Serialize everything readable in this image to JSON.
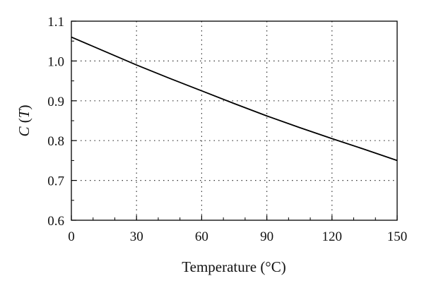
{
  "chart_data": {
    "type": "line",
    "xlabel": "Temperature (°C)",
    "ylabel": {
      "italic_a": "C",
      "middle": " (",
      "italic_b": "T",
      "end": ")"
    },
    "xlim": [
      0,
      150
    ],
    "ylim": [
      0.6,
      1.1
    ],
    "x_ticks": [
      0,
      30,
      60,
      90,
      120,
      150
    ],
    "y_ticks": [
      0.6,
      0.7,
      0.8,
      0.9,
      1.0,
      1.1
    ],
    "x_tick_labels": [
      "0",
      "30",
      "60",
      "90",
      "120",
      "150"
    ],
    "y_tick_labels": [
      "0.6",
      "0.7",
      "0.8",
      "0.9",
      "1.0",
      "1.1"
    ],
    "grid": "dotted",
    "series": [
      {
        "x": [
          0,
          15,
          30,
          45,
          60,
          75,
          90,
          105,
          120,
          135,
          150
        ],
        "y": [
          1.06,
          1.025,
          0.99,
          0.957,
          0.925,
          0.893,
          0.862,
          0.833,
          0.805,
          0.778,
          0.75
        ]
      }
    ]
  }
}
